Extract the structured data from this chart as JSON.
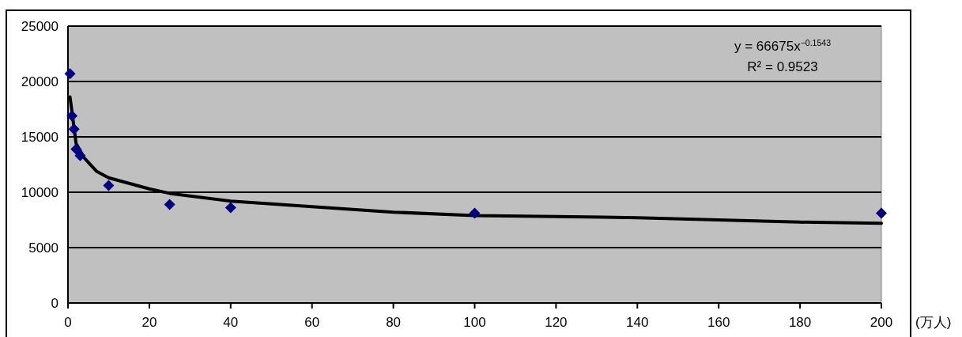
{
  "chart_data": {
    "type": "scatter",
    "xlim": [
      0,
      200
    ],
    "ylim": [
      0,
      25000
    ],
    "xticks": [
      0,
      20,
      40,
      60,
      80,
      100,
      120,
      140,
      160,
      180,
      200
    ],
    "yticks": [
      0,
      5000,
      10000,
      15000,
      20000,
      25000
    ],
    "grid": "y",
    "xlabel": "(万人)",
    "annotations": [
      "y = 66675x$^{−0.1543}$",
      "R² = 0.9523"
    ],
    "series": [
      {
        "marker": "diamond",
        "color": "#000080",
        "x": [
          0.5,
          1,
          1.5,
          2,
          3,
          10,
          25,
          40,
          100,
          200
        ],
        "values": [
          20700,
          16900,
          15700,
          13900,
          13300,
          10600,
          8900,
          8600,
          8100,
          8100
        ]
      },
      {
        "type": "line",
        "marker": "none",
        "color": "#000000",
        "x": [
          0.5,
          1.5,
          2,
          4,
          7,
          10,
          20,
          25,
          40,
          60,
          80,
          100,
          120,
          140,
          160,
          180,
          200
        ],
        "values": [
          18600,
          15800,
          14400,
          13100,
          11900,
          11300,
          10300,
          9900,
          9200,
          8700,
          8200,
          7900,
          7800,
          7700,
          7500,
          7300,
          7200
        ]
      }
    ]
  }
}
